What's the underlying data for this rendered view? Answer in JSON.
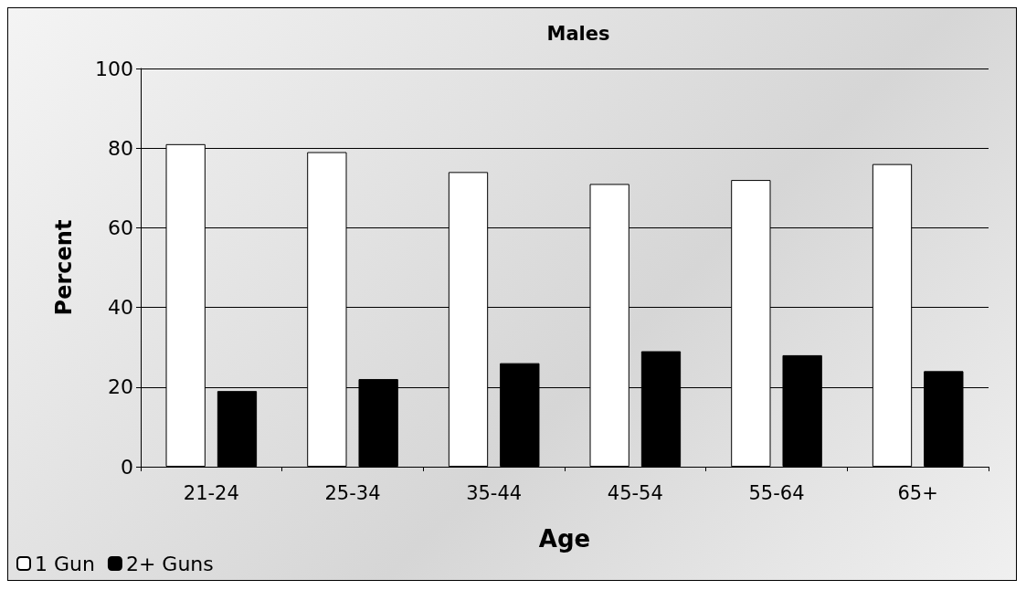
{
  "chart_data": {
    "type": "bar",
    "title": "Males",
    "xlabel": "Age",
    "ylabel": "Percent",
    "categories": [
      "21-24",
      "25-34",
      "35-44",
      "45-54",
      "55-64",
      "65+"
    ],
    "series": [
      {
        "name": "1 Gun",
        "color": "#ffffff",
        "values": [
          81,
          79,
          74,
          71,
          72,
          76
        ]
      },
      {
        "name": "2+ Guns",
        "color": "#000000",
        "values": [
          19,
          22,
          26,
          29,
          28,
          24
        ]
      }
    ],
    "ylim": [
      0,
      100
    ],
    "yticks": [
      0,
      20,
      40,
      60,
      80,
      100
    ],
    "grid": "y",
    "legend": "bottom left"
  }
}
